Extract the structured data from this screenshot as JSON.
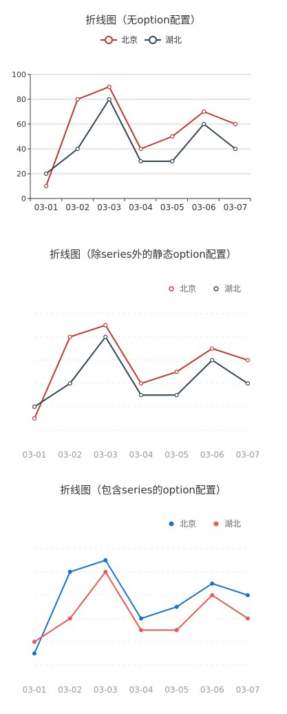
{
  "chart_data": [
    {
      "type": "line",
      "title": "折线图（无option配置）",
      "categories": [
        "03-01",
        "03-02",
        "03-03",
        "03-04",
        "03-05",
        "03-06",
        "03-07"
      ],
      "series": [
        {
          "name": "北京",
          "values": [
            10,
            80,
            90,
            40,
            50,
            70,
            60
          ],
          "color": "#c23531"
        },
        {
          "name": "湖北",
          "values": [
            20,
            40,
            80,
            30,
            30,
            60,
            40
          ],
          "color": "#2f4554"
        }
      ],
      "yticks": [
        0,
        20,
        40,
        60,
        80,
        100
      ],
      "ylim": [
        0,
        100
      ],
      "grid": true,
      "legend_placement": "top-center",
      "legend_style": "line-circle"
    },
    {
      "type": "line",
      "title": "折线图（除series外的静态option配置）",
      "categories": [
        "03-01",
        "03-02",
        "03-03",
        "03-04",
        "03-05",
        "03-06",
        "03-07"
      ],
      "series": [
        {
          "name": "北京",
          "values": [
            10,
            80,
            90,
            40,
            50,
            70,
            60
          ],
          "color": "#c23531"
        },
        {
          "name": "湖北",
          "values": [
            20,
            40,
            80,
            30,
            30,
            60,
            40
          ],
          "color": "#2f4554"
        }
      ],
      "ylim": [
        0,
        100
      ],
      "grid": "dashed",
      "legend_placement": "top-right",
      "legend_style": "hollow-circle"
    },
    {
      "type": "line",
      "title": "折线图（包含series的option配置）",
      "categories": [
        "03-01",
        "03-02",
        "03-03",
        "03-04",
        "03-05",
        "03-06",
        "03-07"
      ],
      "series": [
        {
          "name": "北京",
          "values": [
            10,
            80,
            90,
            40,
            50,
            70,
            60
          ],
          "color": "#1373d3"
        },
        {
          "name": "湖北",
          "values": [
            20,
            40,
            80,
            30,
            30,
            60,
            40
          ],
          "color": "#ee5555"
        }
      ],
      "ylim": [
        0,
        100
      ],
      "grid": "dashed",
      "legend_placement": "top-right",
      "legend_style": "filled-circle"
    }
  ]
}
